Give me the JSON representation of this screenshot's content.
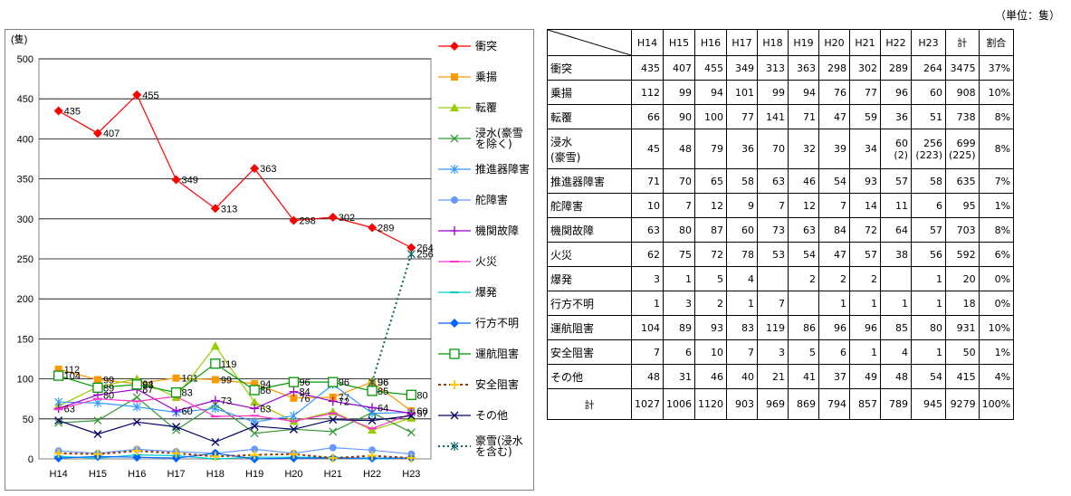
{
  "unit_note": "（単位：隻）",
  "chart_data": {
    "type": "line",
    "ylabel": "(隻)",
    "ylim": [
      0,
      500
    ],
    "yticks": [
      0,
      50,
      100,
      150,
      200,
      250,
      300,
      350,
      400,
      450,
      500
    ],
    "categories": [
      "H14",
      "H15",
      "H16",
      "H17",
      "H18",
      "H19",
      "H20",
      "H21",
      "H22",
      "H23"
    ],
    "grid": true,
    "legend_position": "right",
    "series": [
      {
        "name": "衝突",
        "color": "#ff0000",
        "marker": "diamond",
        "values": [
          435,
          407,
          455,
          349,
          313,
          363,
          298,
          302,
          289,
          264
        ],
        "labels": true
      },
      {
        "name": "乗揚",
        "color": "#ff9900",
        "marker": "square",
        "values": [
          112,
          99,
          94,
          101,
          99,
          94,
          76,
          77,
          96,
          60
        ],
        "labels": true
      },
      {
        "name": "転覆",
        "color": "#99cc00",
        "marker": "triangle",
        "values": [
          66,
          90,
          100,
          77,
          141,
          71,
          47,
          59,
          36,
          51
        ]
      },
      {
        "name": "浸水(豪雪を除く)",
        "color": "#339933",
        "marker": "x",
        "values": [
          45,
          48,
          77,
          36,
          68,
          32,
          37,
          34,
          58,
          33
        ]
      },
      {
        "name": "推進器障害",
        "color": "#3399ff",
        "marker": "star",
        "values": [
          71,
          70,
          65,
          58,
          63,
          46,
          54,
          93,
          57,
          58
        ]
      },
      {
        "name": "舵障害",
        "color": "#6699ff",
        "marker": "circle",
        "values": [
          10,
          7,
          12,
          9,
          7,
          12,
          7,
          14,
          11,
          6
        ]
      },
      {
        "name": "機関故障",
        "color": "#9900cc",
        "marker": "plus",
        "values": [
          63,
          80,
          87,
          60,
          73,
          63,
          84,
          72,
          64,
          57
        ],
        "labels": true
      },
      {
        "name": "火災",
        "color": "#ff33cc",
        "marker": "dash",
        "values": [
          62,
          75,
          72,
          78,
          53,
          54,
          47,
          57,
          38,
          56
        ]
      },
      {
        "name": "爆発",
        "color": "#00cccc",
        "marker": "dash",
        "values": [
          3,
          1,
          5,
          4,
          0,
          2,
          2,
          2,
          0,
          1
        ]
      },
      {
        "name": "行方不明",
        "color": "#0066ff",
        "marker": "diamond",
        "values": [
          1,
          3,
          2,
          1,
          7,
          0,
          1,
          1,
          1,
          1
        ]
      },
      {
        "name": "運航阻害",
        "color": "#009900",
        "marker": "square-open",
        "values": [
          104,
          89,
          93,
          83,
          119,
          86,
          96,
          96,
          85,
          80
        ],
        "labels": true
      },
      {
        "name": "安全阻害",
        "color": "#993300",
        "marker": "plus-yellow",
        "dashed": true,
        "values": [
          7,
          6,
          10,
          7,
          3,
          5,
          6,
          1,
          4,
          1
        ]
      },
      {
        "name": "その他",
        "color": "#000066",
        "marker": "x",
        "values": [
          48,
          31,
          46,
          40,
          21,
          41,
          37,
          49,
          48,
          54
        ]
      },
      {
        "name": "豪雪(浸水を含む)",
        "color": "#006666",
        "marker": "star",
        "dotted": true,
        "values": [
          null,
          null,
          null,
          null,
          null,
          null,
          null,
          null,
          96,
          256
        ],
        "labels": true
      }
    ]
  },
  "table": {
    "headers": [
      "H14",
      "H15",
      "H16",
      "H17",
      "H18",
      "H19",
      "H20",
      "H21",
      "H22",
      "H23",
      "計",
      "割合"
    ],
    "rows": [
      {
        "label": "衝突",
        "cells": [
          "435",
          "407",
          "455",
          "349",
          "313",
          "363",
          "298",
          "302",
          "289",
          "264",
          "3475",
          "37%"
        ]
      },
      {
        "label": "乗揚",
        "cells": [
          "112",
          "99",
          "94",
          "101",
          "99",
          "94",
          "76",
          "77",
          "96",
          "60",
          "908",
          "10%"
        ]
      },
      {
        "label": "転覆",
        "cells": [
          "66",
          "90",
          "100",
          "77",
          "141",
          "71",
          "47",
          "59",
          "36",
          "51",
          "738",
          "8%"
        ]
      },
      {
        "label": "浸水",
        "label2": "(豪雪)",
        "tall": true,
        "cells": [
          "45",
          "48",
          "79",
          "36",
          "70",
          "32",
          "39",
          "34",
          "60",
          "256",
          "699",
          "8%"
        ],
        "sub": [
          "",
          "",
          "",
          "",
          "",
          "",
          "",
          "",
          "(2)",
          "(223)",
          "(225)",
          ""
        ]
      },
      {
        "label": "推進器障害",
        "cells": [
          "71",
          "70",
          "65",
          "58",
          "63",
          "46",
          "54",
          "93",
          "57",
          "58",
          "635",
          "7%"
        ]
      },
      {
        "label": "舵障害",
        "cells": [
          "10",
          "7",
          "12",
          "9",
          "7",
          "12",
          "7",
          "14",
          "11",
          "6",
          "95",
          "1%"
        ]
      },
      {
        "label": "機関故障",
        "cells": [
          "63",
          "80",
          "87",
          "60",
          "73",
          "63",
          "84",
          "72",
          "64",
          "57",
          "703",
          "8%"
        ]
      },
      {
        "label": "火災",
        "cells": [
          "62",
          "75",
          "72",
          "78",
          "53",
          "54",
          "47",
          "57",
          "38",
          "56",
          "592",
          "6%"
        ]
      },
      {
        "label": "爆発",
        "cells": [
          "3",
          "1",
          "5",
          "4",
          "",
          "2",
          "2",
          "2",
          "",
          "1",
          "20",
          "0%"
        ]
      },
      {
        "label": "行方不明",
        "cells": [
          "1",
          "3",
          "2",
          "1",
          "7",
          "",
          "1",
          "1",
          "1",
          "1",
          "18",
          "0%"
        ]
      },
      {
        "label": "運航阻害",
        "cells": [
          "104",
          "89",
          "93",
          "83",
          "119",
          "86",
          "96",
          "96",
          "85",
          "80",
          "931",
          "10%"
        ]
      },
      {
        "label": "安全阻害",
        "cells": [
          "7",
          "6",
          "10",
          "7",
          "3",
          "5",
          "6",
          "1",
          "4",
          "1",
          "50",
          "1%"
        ]
      },
      {
        "label": "その他",
        "cells": [
          "48",
          "31",
          "46",
          "40",
          "21",
          "41",
          "37",
          "49",
          "48",
          "54",
          "415",
          "4%"
        ]
      }
    ],
    "total": {
      "label": "計",
      "cells": [
        "1027",
        "1006",
        "1120",
        "903",
        "969",
        "869",
        "794",
        "857",
        "789",
        "945",
        "9279",
        "100%"
      ]
    }
  }
}
